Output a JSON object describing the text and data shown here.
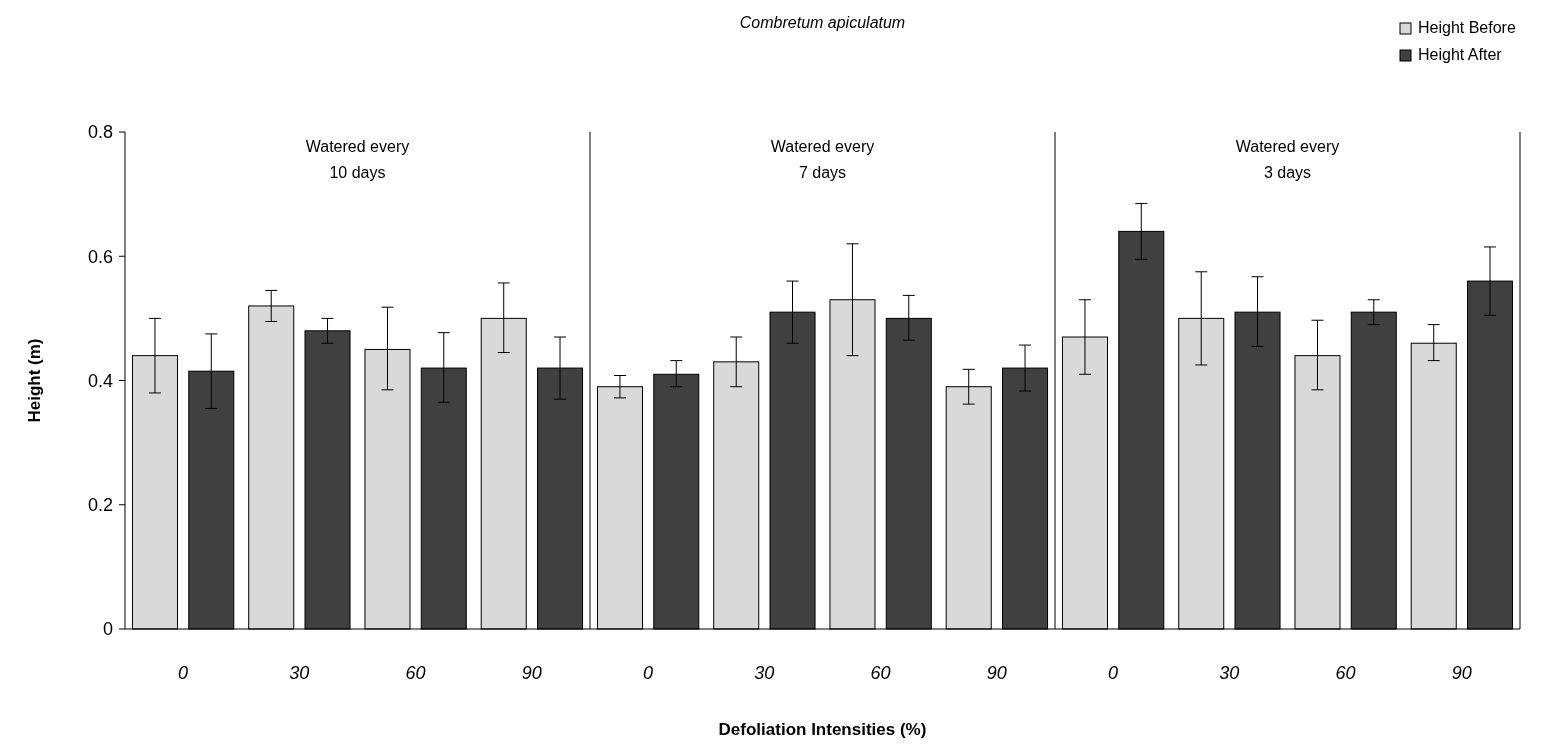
{
  "chart_data": {
    "type": "bar",
    "title": "Combretum apiculatum",
    "xlabel": "Defoliation Intensities (%)",
    "ylabel": "Height (m)",
    "categories": [
      "0",
      "30",
      "60",
      "90",
      "0",
      "30",
      "60",
      "90",
      "0",
      "30",
      "60",
      "90"
    ],
    "series": [
      {
        "name": "Height Before",
        "color": "#d9d9d9",
        "values": [
          0.44,
          0.52,
          0.45,
          0.5,
          0.39,
          0.43,
          0.53,
          0.39,
          0.47,
          0.5,
          0.44,
          0.46
        ],
        "errors": [
          [
            0.38,
            0.5
          ],
          [
            0.495,
            0.545
          ],
          [
            0.385,
            0.518
          ],
          [
            0.445,
            0.557
          ],
          [
            0.372,
            0.408
          ],
          [
            0.39,
            0.47
          ],
          [
            0.44,
            0.62
          ],
          [
            0.362,
            0.418
          ],
          [
            0.41,
            0.53
          ],
          [
            0.425,
            0.575
          ],
          [
            0.385,
            0.497
          ],
          [
            0.432,
            0.49
          ]
        ]
      },
      {
        "name": "Height After",
        "color": "#404040",
        "values": [
          0.415,
          0.48,
          0.42,
          0.42,
          0.41,
          0.51,
          0.5,
          0.42,
          0.64,
          0.51,
          0.51,
          0.56
        ],
        "errors": [
          [
            0.355,
            0.475
          ],
          [
            0.46,
            0.5
          ],
          [
            0.365,
            0.477
          ],
          [
            0.37,
            0.47
          ],
          [
            0.39,
            0.432
          ],
          [
            0.46,
            0.56
          ],
          [
            0.465,
            0.537
          ],
          [
            0.383,
            0.457
          ],
          [
            0.595,
            0.685
          ],
          [
            0.455,
            0.567
          ],
          [
            0.49,
            0.53
          ],
          [
            0.505,
            0.615
          ]
        ]
      }
    ],
    "ylim": [
      0,
      0.8
    ],
    "yticks": [
      0,
      0.2,
      0.4,
      0.6,
      0.8
    ],
    "grid": false,
    "legend": "top right",
    "annotations": [
      "Watered every\n10 days",
      "Watered every\n7 days",
      "Watered every\n3 days"
    ]
  }
}
